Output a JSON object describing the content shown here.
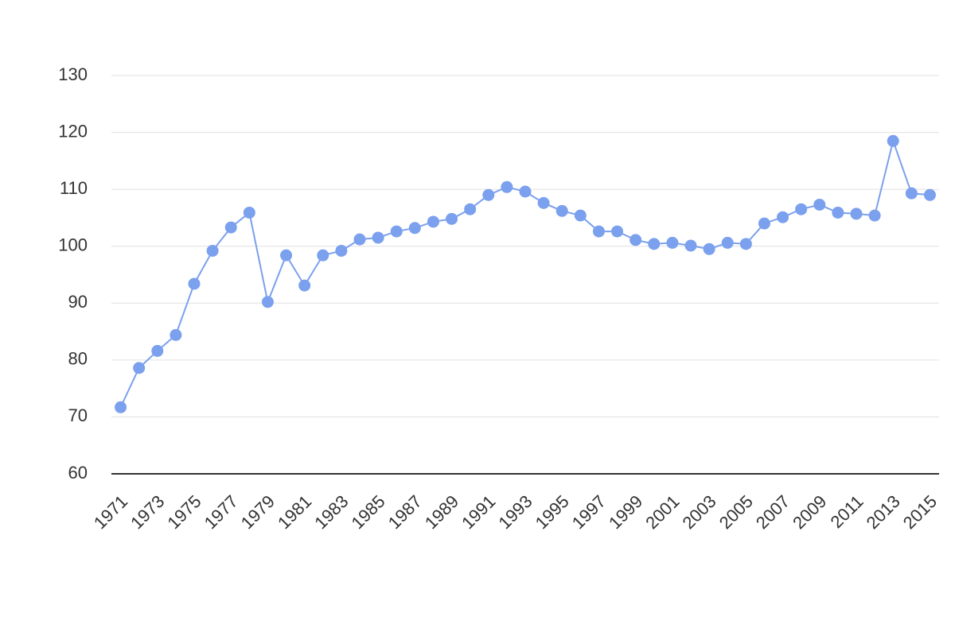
{
  "chart_data": {
    "type": "line",
    "x": [
      1971,
      1972,
      1973,
      1974,
      1975,
      1976,
      1977,
      1978,
      1979,
      1980,
      1981,
      1982,
      1983,
      1984,
      1985,
      1986,
      1987,
      1988,
      1989,
      1990,
      1991,
      1992,
      1993,
      1994,
      1995,
      1996,
      1997,
      1998,
      1999,
      2000,
      2001,
      2002,
      2003,
      2004,
      2005,
      2006,
      2007,
      2008,
      2009,
      2010,
      2011,
      2012,
      2013,
      2014,
      2015
    ],
    "values": [
      71.7,
      78.6,
      81.6,
      84.4,
      93.4,
      99.2,
      103.3,
      105.9,
      90.2,
      98.4,
      93.1,
      98.4,
      99.2,
      101.2,
      101.5,
      102.6,
      103.2,
      104.3,
      104.8,
      106.5,
      109.0,
      110.4,
      109.6,
      107.6,
      106.2,
      105.4,
      102.6,
      102.6,
      101.1,
      100.4,
      100.6,
      100.1,
      99.5,
      100.6,
      100.4,
      104.0,
      105.1,
      106.5,
      107.3,
      105.9,
      105.7,
      105.4,
      118.5,
      109.3,
      109.0
    ],
    "color": "#7ba0ee",
    "xlim": [
      1970.5,
      2015.5
    ],
    "xticks": [
      1971,
      1973,
      1975,
      1977,
      1979,
      1981,
      1983,
      1985,
      1987,
      1989,
      1991,
      1993,
      1995,
      1997,
      1999,
      2001,
      2003,
      2005,
      2007,
      2009,
      2011,
      2013,
      2015
    ],
    "ylim": [
      60,
      130
    ],
    "yticks": [
      60,
      70,
      80,
      90,
      100,
      110,
      120,
      130
    ],
    "grid": true
  }
}
